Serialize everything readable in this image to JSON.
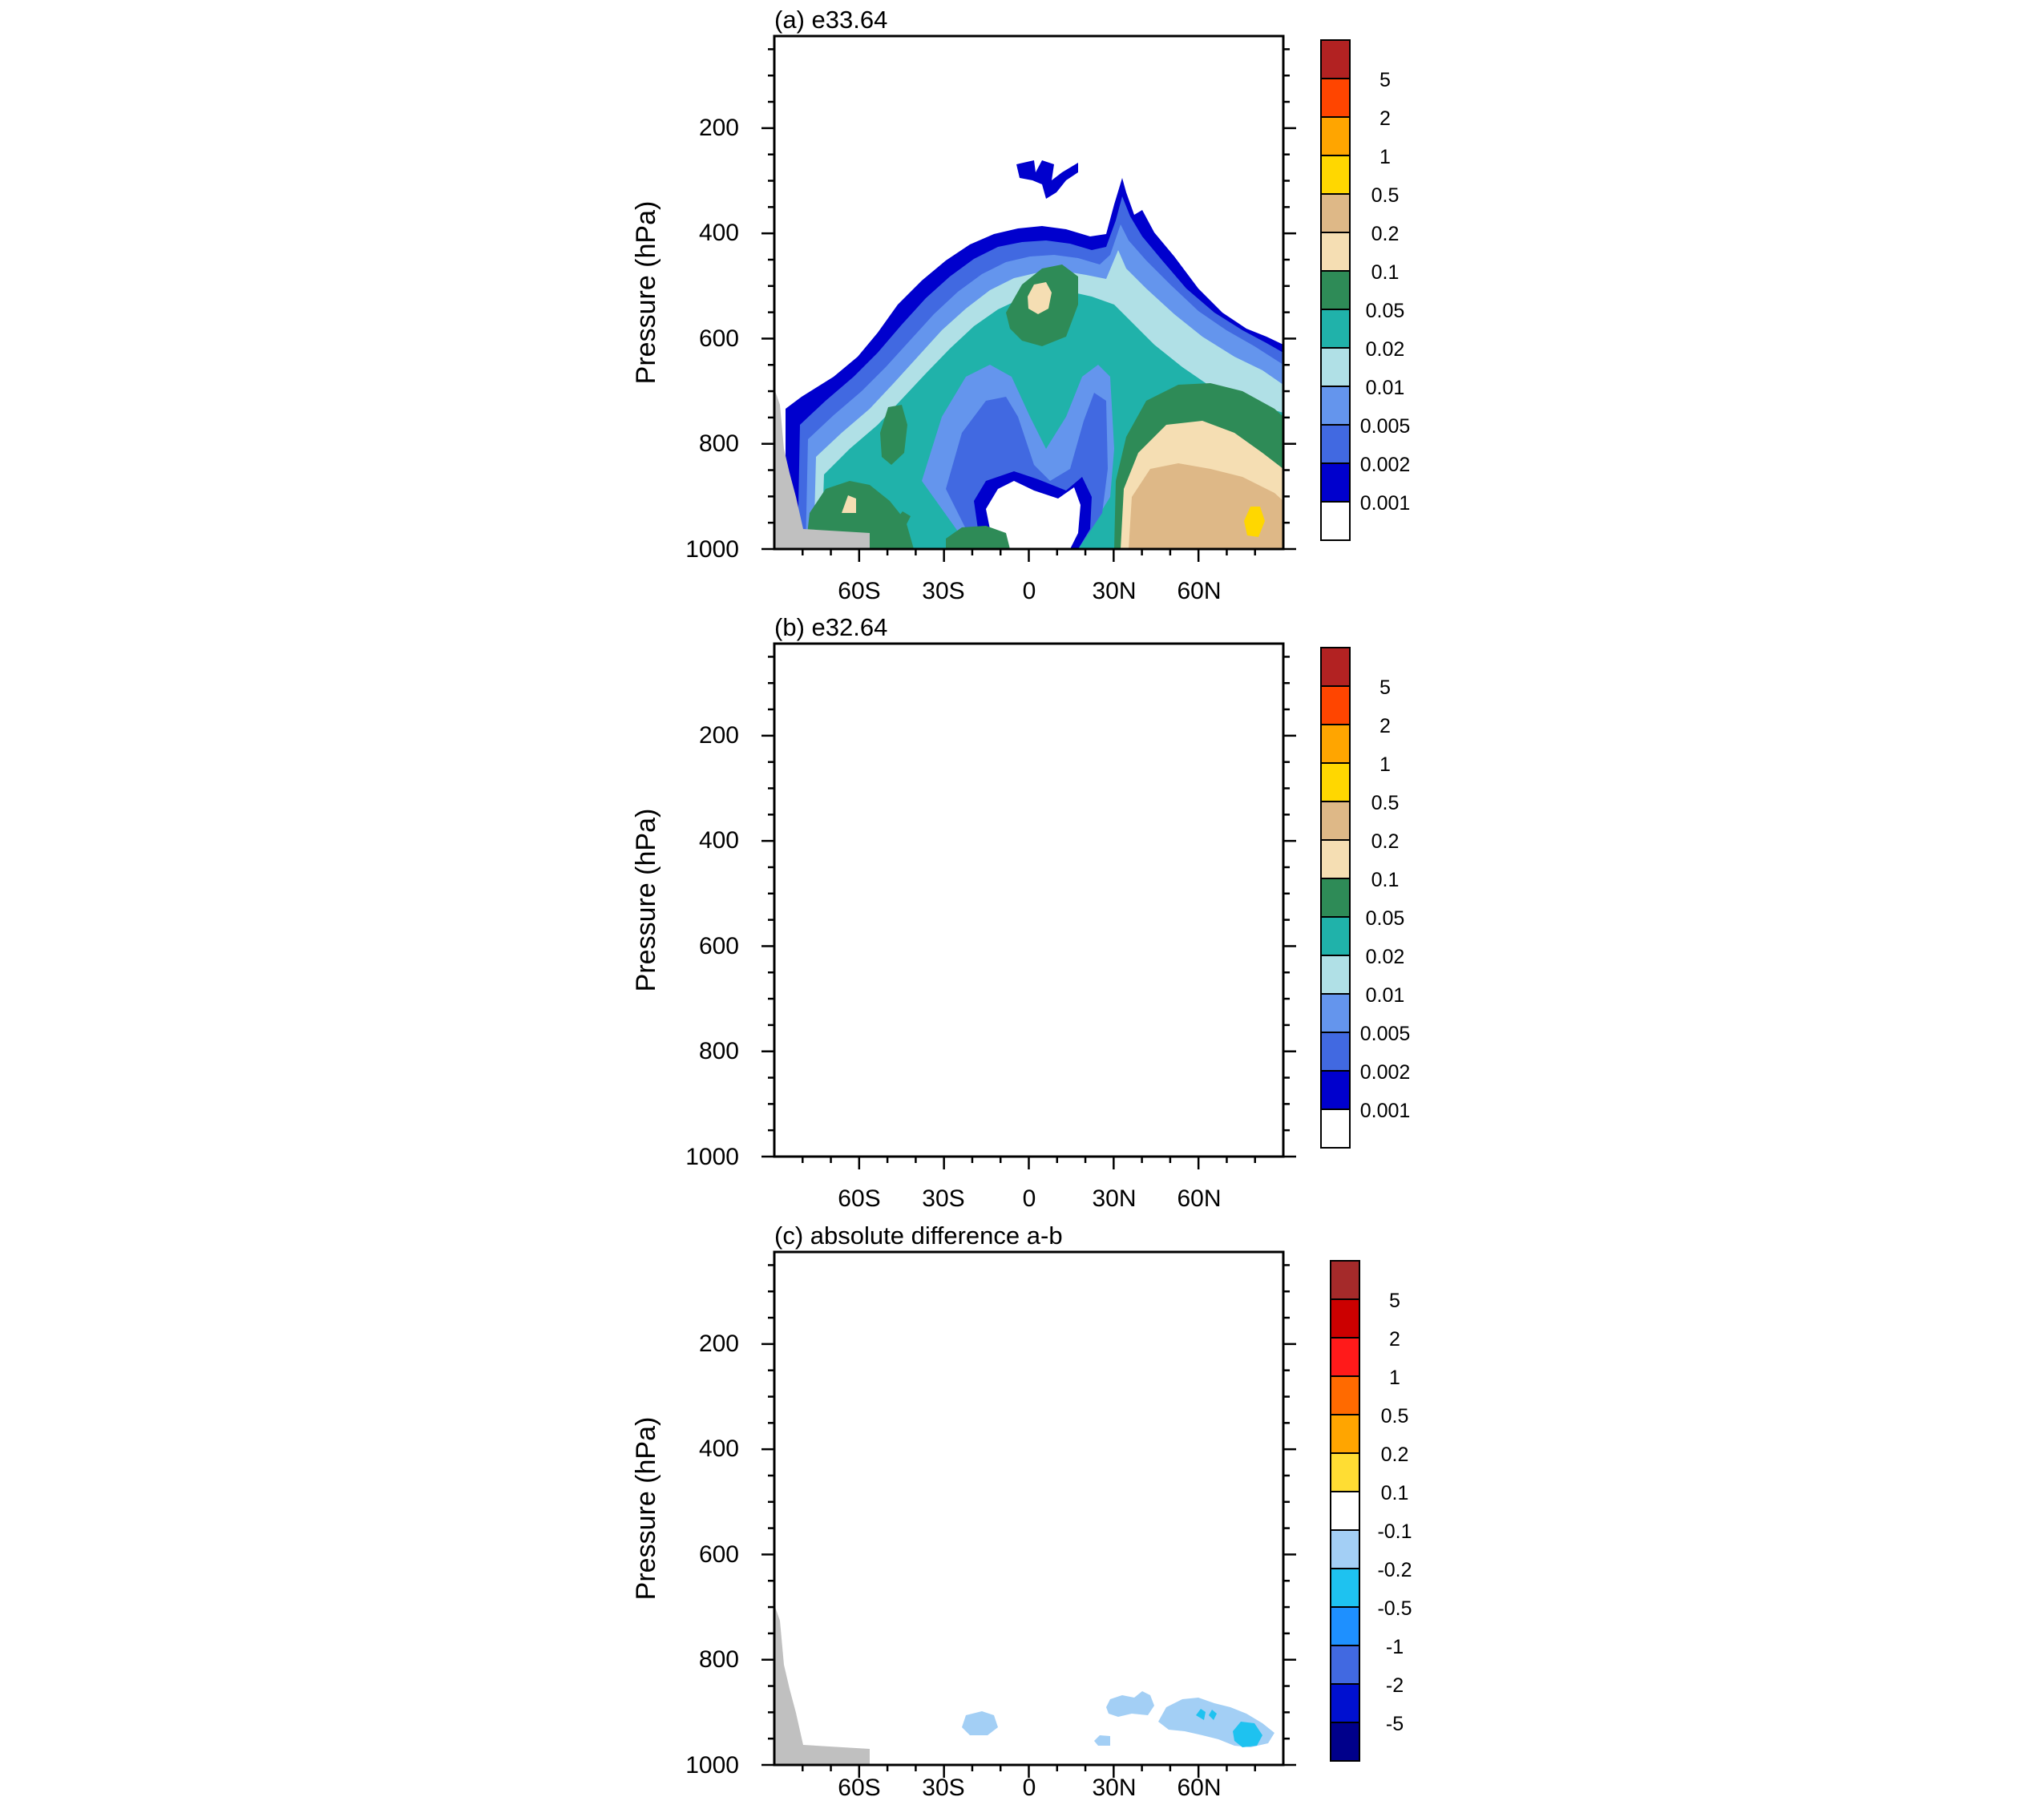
{
  "chart_data": [
    {
      "type": "heatmap",
      "title": "(a) e33.64",
      "ylabel": "Pressure (hPa)",
      "xlabel": "",
      "y_ticks": [
        200,
        400,
        600,
        800,
        1000
      ],
      "x_ticks": [
        "60S",
        "30S",
        "0",
        "30N",
        "60N"
      ],
      "x_tick_values": [
        -60,
        -30,
        0,
        30,
        60
      ],
      "xlim": [
        -90,
        90
      ],
      "ylim": [
        1000,
        25
      ],
      "colorbar": {
        "labels": [
          "5",
          "2",
          "1",
          "0.5",
          "0.2",
          "0.1",
          "0.05",
          "0.02",
          "0.01",
          "0.005",
          "0.002",
          "0.001"
        ],
        "colors": [
          "#b22222",
          "#ff4500",
          "#ffa500",
          "#ffd700",
          "#deb887",
          "#f5deb3",
          "#2e8b57",
          "#20b2aa",
          "#b0e0e6",
          "#6495ed",
          "#4169e1",
          "#0000cd",
          "#ffffff"
        ]
      }
    },
    {
      "type": "heatmap",
      "title": "(b) e32.64",
      "ylabel": "Pressure (hPa)",
      "xlabel": "",
      "y_ticks": [
        200,
        400,
        600,
        800,
        1000
      ],
      "x_ticks": [
        "60S",
        "30S",
        "0",
        "30N",
        "60N"
      ],
      "x_tick_values": [
        -60,
        -30,
        0,
        30,
        60
      ],
      "xlim": [
        -90,
        90
      ],
      "ylim": [
        1000,
        25
      ],
      "colorbar": {
        "labels": [
          "5",
          "2",
          "1",
          "0.5",
          "0.2",
          "0.1",
          "0.05",
          "0.02",
          "0.01",
          "0.005",
          "0.002",
          "0.001"
        ],
        "colors": [
          "#b22222",
          "#ff4500",
          "#ffa500",
          "#ffd700",
          "#deb887",
          "#f5deb3",
          "#2e8b57",
          "#20b2aa",
          "#b0e0e6",
          "#6495ed",
          "#4169e1",
          "#0000cd",
          "#ffffff"
        ]
      }
    },
    {
      "type": "heatmap",
      "title": "(c) absolute difference a-b",
      "ylabel": "Pressure (hPa)",
      "xlabel": "",
      "y_ticks": [
        200,
        400,
        600,
        800,
        1000
      ],
      "x_ticks": [
        "60S",
        "30S",
        "0",
        "30N",
        "60N"
      ],
      "x_tick_values": [
        -60,
        -30,
        0,
        30,
        60
      ],
      "xlim": [
        -90,
        90
      ],
      "ylim": [
        1000,
        25
      ],
      "colorbar": {
        "labels": [
          "5",
          "2",
          "1",
          "0.5",
          "0.2",
          "0.1",
          "-0.1",
          "-0.2",
          "-0.5",
          "-1",
          "-2",
          "-5"
        ],
        "colors": [
          "#a52a2a",
          "#cc0000",
          "#ff1a1a",
          "#ff6a00",
          "#ffa500",
          "#ffdd33",
          "#ffffff",
          "#a3cff5",
          "#1ec2f0",
          "#1e90ff",
          "#4169e1",
          "#0010d0",
          "#00008b"
        ]
      }
    }
  ]
}
